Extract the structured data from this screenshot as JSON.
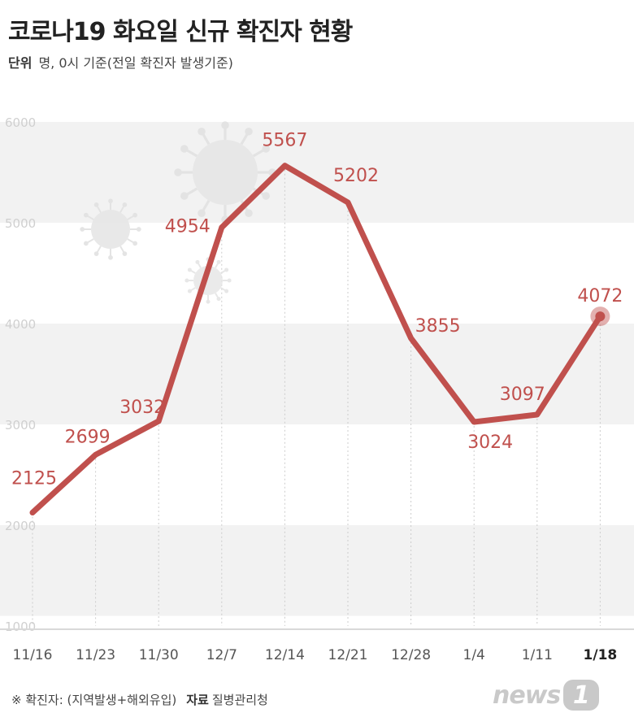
{
  "title": "코로나19 화요일 신규 확진자 현황",
  "subtitle": {
    "unit_label": "단위",
    "unit_text": "명, 0시 기준(전일 확진자 발생기준)"
  },
  "chart_data": {
    "type": "line",
    "title": "코로나19 화요일 신규 확진자 현황",
    "categories": [
      "11/16",
      "11/23",
      "11/30",
      "12/7",
      "12/14",
      "12/21",
      "12/28",
      "1/4",
      "1/11",
      "1/18"
    ],
    "series": [
      {
        "values": [
          2125,
          2699,
          3032,
          4954,
          5567,
          5202,
          3855,
          3024,
          3097,
          4072
        ]
      }
    ],
    "y_ticks": [
      1000,
      2000,
      3000,
      4000,
      5000,
      6000
    ],
    "ylim": [
      1000,
      6000
    ],
    "highlight_category": "1/18",
    "line_color": "#c0504d",
    "band_color": "#f2f2f2",
    "grid": false
  },
  "footer": {
    "note": "※ 확진자: (지역발생+해외유입)",
    "source_label": "자료",
    "source_text": "질병관리청"
  },
  "logo": {
    "text": "news",
    "badge": "1"
  }
}
